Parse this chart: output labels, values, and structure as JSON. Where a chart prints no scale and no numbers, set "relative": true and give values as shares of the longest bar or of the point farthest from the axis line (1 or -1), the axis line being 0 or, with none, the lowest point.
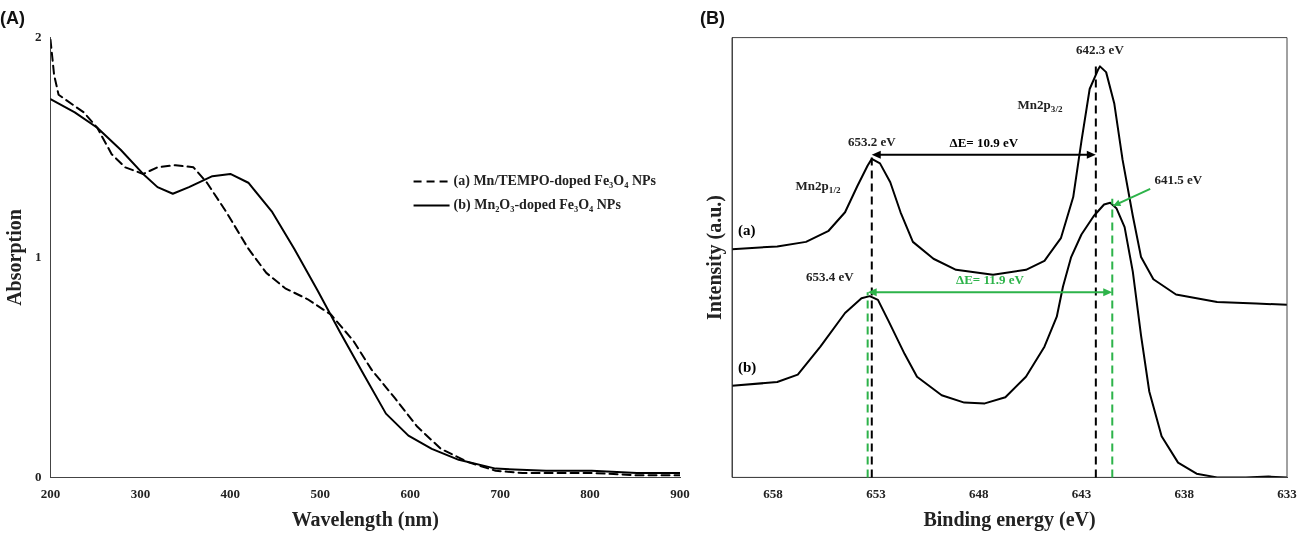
{
  "chart_data": [
    {
      "type": "line",
      "title": "(A)",
      "xlabel": "Wavelength (nm)",
      "ylabel": "Absorption",
      "xlim": [
        200,
        900
      ],
      "xticks": [
        200,
        300,
        400,
        500,
        600,
        700,
        800,
        900
      ],
      "ylim": [
        0,
        2
      ],
      "yticks": [
        0,
        1,
        2
      ],
      "grid": false,
      "legend": "right",
      "marker": "none",
      "series": [
        {
          "name": "(a) Mn/TEMPO-doped Fe₃O₄ NPs",
          "color": "#000000",
          "line_style": "dashed",
          "x": [
            200,
            204,
            209,
            237,
            252,
            268,
            283,
            303,
            319,
            339,
            359,
            374,
            395,
            420,
            440,
            461,
            486,
            512,
            537,
            557,
            583,
            608,
            634,
            664,
            695,
            725,
            802,
            852,
            900
          ],
          "values": [
            1.99,
            1.83,
            1.74,
            1.66,
            1.59,
            1.47,
            1.41,
            1.38,
            1.41,
            1.42,
            1.41,
            1.34,
            1.21,
            1.04,
            0.93,
            0.86,
            0.81,
            0.74,
            0.62,
            0.49,
            0.36,
            0.23,
            0.13,
            0.07,
            0.03,
            0.02,
            0.02,
            0.01,
            0.01
          ]
        },
        {
          "name": "(b) Mn₂O₃-doped Fe₃O₄ NPs",
          "color": "#000000",
          "line_style": "solid",
          "x": [
            200,
            227,
            252,
            278,
            303,
            319,
            336,
            354,
            380,
            400,
            420,
            446,
            471,
            497,
            522,
            548,
            573,
            598,
            624,
            654,
            695,
            751,
            802,
            852,
            900
          ],
          "values": [
            1.72,
            1.66,
            1.59,
            1.49,
            1.38,
            1.32,
            1.29,
            1.32,
            1.37,
            1.38,
            1.34,
            1.21,
            1.04,
            0.85,
            0.66,
            0.47,
            0.29,
            0.19,
            0.13,
            0.08,
            0.04,
            0.03,
            0.03,
            0.02,
            0.02
          ]
        }
      ]
    },
    {
      "type": "line",
      "title": "(B)",
      "xlabel": "Binding energy (eV)",
      "ylabel": "Intensity (a.u.)",
      "relative": true,
      "xlim": [
        660,
        633
      ],
      "xticks": [
        658,
        653,
        648,
        643,
        638,
        633
      ],
      "grid": false,
      "legend": false,
      "marker": "none",
      "series": [
        {
          "name": "(a)",
          "color": "#000000",
          "x": [
            660.0,
            657.8,
            656.4,
            655.3,
            654.5,
            653.9,
            653.4,
            653.2,
            652.8,
            652.3,
            651.8,
            651.2,
            650.2,
            649.1,
            647.3,
            645.7,
            644.8,
            644.0,
            643.4,
            643.0,
            642.6,
            642.2,
            642.1,
            641.8,
            641.4,
            641.0,
            640.5,
            640.1,
            639.5,
            638.4,
            636.4,
            634.5,
            633.0
          ],
          "values": [
            0.555,
            0.562,
            0.573,
            0.6,
            0.645,
            0.709,
            0.759,
            0.775,
            0.764,
            0.718,
            0.645,
            0.573,
            0.532,
            0.505,
            0.493,
            0.505,
            0.527,
            0.582,
            0.682,
            0.818,
            0.945,
            0.991,
            1.0,
            0.986,
            0.909,
            0.773,
            0.636,
            0.536,
            0.482,
            0.445,
            0.427,
            0.423,
            0.42
          ]
        },
        {
          "name": "(b)",
          "color": "#000000",
          "x": [
            660.0,
            657.8,
            656.8,
            655.7,
            654.5,
            653.7,
            653.3,
            652.9,
            652.4,
            651.6,
            651.0,
            649.8,
            648.7,
            647.7,
            646.7,
            645.7,
            644.8,
            644.2,
            643.9,
            643.5,
            643.0,
            642.4,
            641.9,
            641.6,
            641.3,
            640.9,
            640.5,
            640.1,
            639.7,
            639.1,
            638.3,
            637.4,
            636.4,
            635.0,
            633.9,
            633.0
          ],
          "values": [
            0.223,
            0.232,
            0.25,
            0.318,
            0.4,
            0.436,
            0.441,
            0.432,
            0.382,
            0.3,
            0.245,
            0.2,
            0.182,
            0.18,
            0.195,
            0.245,
            0.318,
            0.391,
            0.464,
            0.536,
            0.591,
            0.636,
            0.664,
            0.668,
            0.655,
            0.609,
            0.5,
            0.345,
            0.209,
            0.1,
            0.036,
            0.009,
            0,
            0,
            0.002,
            0
          ]
        }
      ],
      "ref_lines": [
        {
          "axis": "x",
          "value": 653.2,
          "color": "#000000",
          "line_style": "dashed"
        },
        {
          "axis": "x",
          "value": 642.3,
          "color": "#000000",
          "line_style": "dashed"
        },
        {
          "axis": "x",
          "value": 653.4,
          "color": "#2db34a",
          "line_style": "dashed"
        },
        {
          "axis": "x",
          "value": 641.5,
          "color": "#2db34a",
          "line_style": "dashed"
        }
      ],
      "annotations": [
        {
          "text": "653.2 eV",
          "x": 653.2,
          "y": 0.775
        },
        {
          "text": "642.3 eV",
          "x": 642.1,
          "y": 1.0
        },
        "Mn2p$_{3/2}$",
        "Mn2p$_{1/2}$",
        {
          "text": "641.5 eV",
          "x": 641.6,
          "y": 0.668
        },
        {
          "text": "653.4 eV",
          "x": 653.3,
          "y": 0.441
        },
        "ΔE= 10.9 eV",
        "ΔE= 11.9 eV"
      ]
    }
  ]
}
